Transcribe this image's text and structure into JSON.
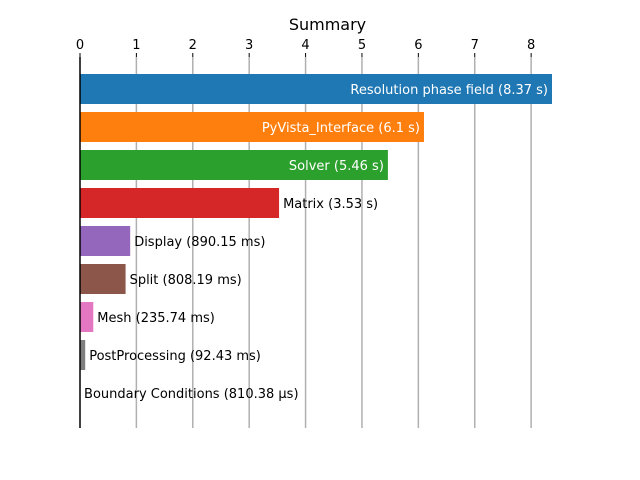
{
  "chart_data": {
    "type": "bar",
    "orientation": "horizontal",
    "title": "Summary",
    "xlabel": "",
    "ylabel": "",
    "xlim": [
      0,
      8.37
    ],
    "xticks": [
      0,
      1,
      2,
      3,
      4,
      5,
      6,
      7,
      8
    ],
    "grid": "vertical",
    "x_axis_position": "top",
    "bars": [
      {
        "label": "Resolution phase field (8.37 s)",
        "value": 8.37,
        "color": "#1f77b4",
        "label_inside": true
      },
      {
        "label": "PyVista_Interface (6.1 s)",
        "value": 6.1,
        "color": "#ff7f0e",
        "label_inside": true
      },
      {
        "label": "Solver (5.46 s)",
        "value": 5.46,
        "color": "#2ca02c",
        "label_inside": true
      },
      {
        "label": "Matrix (3.53 s)",
        "value": 3.53,
        "color": "#d62728",
        "label_inside": false
      },
      {
        "label": "Display (890.15 ms)",
        "value": 0.89015,
        "color": "#9467bd",
        "label_inside": false
      },
      {
        "label": "Split (808.19 ms)",
        "value": 0.80819,
        "color": "#8c564b",
        "label_inside": false
      },
      {
        "label": "Mesh (235.74 ms)",
        "value": 0.23574,
        "color": "#e377c2",
        "label_inside": false
      },
      {
        "label": "PostProcessing (92.43 ms)",
        "value": 0.09243,
        "color": "#7f7f7f",
        "label_inside": false
      },
      {
        "label": "Boundary Conditions (810.38 µs)",
        "value": 0.00081038,
        "color": "#bcbd22",
        "label_inside": false
      }
    ]
  }
}
